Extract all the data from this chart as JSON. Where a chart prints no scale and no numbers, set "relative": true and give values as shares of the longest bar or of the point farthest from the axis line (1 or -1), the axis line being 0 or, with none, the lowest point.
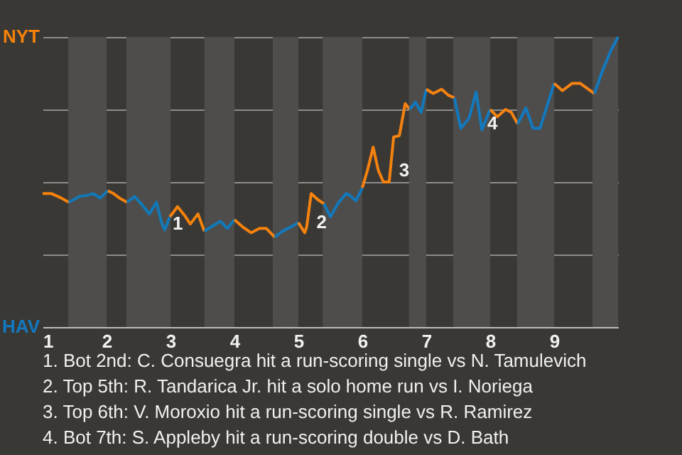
{
  "chart_data": {
    "type": "line",
    "series": [
      {
        "color": "#f5820a",
        "x": [
          1,
          1.14,
          1.29,
          1.41
        ],
        "values": [
          0.46,
          0.46,
          0.445,
          0.43
        ]
      },
      {
        "color": "#1279b8",
        "x": [
          1.41,
          1.57,
          1.71,
          1.79,
          1.9,
          2.02
        ],
        "values": [
          0.43,
          0.45,
          0.455,
          0.46,
          0.445,
          0.47
        ]
      },
      {
        "color": "#f5820b",
        "x": [
          2.02,
          2.11,
          2.2,
          2.32
        ],
        "values": [
          0.47,
          0.46,
          0.445,
          0.43
        ]
      },
      {
        "color": "#1279b9",
        "x": [
          2.32,
          2.44,
          2.56,
          2.67,
          2.78,
          2.86,
          2.91,
          2.99
        ],
        "values": [
          0.43,
          0.45,
          0.42,
          0.39,
          0.43,
          0.36,
          0.335,
          0.38
        ]
      },
      {
        "color": "#f5820c",
        "x": [
          2.99,
          3.11,
          3.22,
          3.31,
          3.43,
          3.53
        ],
        "values": [
          0.38,
          0.415,
          0.385,
          0.355,
          0.39,
          0.33
        ]
      },
      {
        "color": "#1279ba",
        "x": [
          3.53,
          3.67,
          3.78,
          3.89,
          4
        ],
        "values": [
          0.33,
          0.35,
          0.365,
          0.34,
          0.37
        ]
      },
      {
        "color": "#f5820d",
        "x": [
          4,
          4.13,
          4.26,
          4.39,
          4.5,
          4.63
        ],
        "values": [
          0.37,
          0.345,
          0.325,
          0.34,
          0.34,
          0.31
        ]
      },
      {
        "color": "#1279bb",
        "x": [
          4.63,
          4.75,
          4.88,
          5
        ],
        "values": [
          0.31,
          0.33,
          0.345,
          0.36
        ]
      },
      {
        "color": "#f5820e",
        "x": [
          5,
          5.1,
          5.13,
          5.2,
          5.3,
          5.4
        ],
        "values": [
          0.36,
          0.325,
          0.345,
          0.46,
          0.44,
          0.425
        ]
      },
      {
        "color": "#1279bc",
        "x": [
          5.4,
          5.5,
          5.63,
          5.75,
          5.8,
          5.9,
          6
        ],
        "values": [
          0.425,
          0.38,
          0.43,
          0.46,
          0.455,
          0.435,
          0.48
        ]
      },
      {
        "color": "#f5820f",
        "x": [
          6,
          6.08,
          6.17,
          6.25,
          6.33,
          6.42,
          6.49,
          6.58,
          6.67,
          6.74
        ],
        "values": [
          0.48,
          0.54,
          0.62,
          0.54,
          0.5,
          0.5,
          0.655,
          0.66,
          0.77,
          0.75
        ]
      },
      {
        "color": "#1279bd",
        "x": [
          6.74,
          6.83,
          6.92,
          7
        ],
        "values": [
          0.75,
          0.775,
          0.74,
          0.82
        ]
      },
      {
        "color": "#f58210",
        "x": [
          7,
          7.11,
          7.24,
          7.34,
          7.44
        ],
        "values": [
          0.82,
          0.805,
          0.82,
          0.8,
          0.79
        ]
      },
      {
        "color": "#1279be",
        "x": [
          7.44,
          7.54,
          7.67,
          7.78,
          7.87,
          8
        ],
        "values": [
          0.79,
          0.685,
          0.72,
          0.81,
          0.68,
          0.75
        ]
      },
      {
        "color": "#f58211",
        "x": [
          8,
          8.11,
          8.24,
          8.33,
          8.43
        ],
        "values": [
          0.75,
          0.725,
          0.75,
          0.74,
          0.7
        ]
      },
      {
        "color": "#1279bf",
        "x": [
          8.43,
          8.56,
          8.67,
          8.78,
          9
        ],
        "values": [
          0.7,
          0.755,
          0.685,
          0.685,
          0.84
        ]
      },
      {
        "color": "#f58212",
        "x": [
          9,
          9.13,
          9.28,
          9.41,
          9.63
        ],
        "values": [
          0.84,
          0.815,
          0.84,
          0.84,
          0.805
        ]
      },
      {
        "color": "#1279c0",
        "x": [
          9.63,
          9.75,
          9.88,
          10
        ],
        "values": [
          0.805,
          0.88,
          0.95,
          1.0
        ]
      }
    ],
    "xlim": [
      1,
      10
    ],
    "xticks": [
      1,
      2,
      3,
      4,
      5,
      6,
      7,
      8,
      9
    ],
    "relative": true,
    "grid": "y",
    "bands": [
      {
        "axis": "x",
        "from": 1.4,
        "to": 2,
        "color": "#4e4d4b"
      },
      {
        "axis": "x",
        "from": 2.31,
        "to": 3,
        "color": "#4e4d4b"
      },
      {
        "axis": "x",
        "from": 3.53,
        "to": 4,
        "color": "#4e4d4b"
      },
      {
        "axis": "x",
        "from": 4.6,
        "to": 5,
        "color": "#4e4d4b"
      },
      {
        "axis": "x",
        "from": 5.38,
        "to": 6,
        "color": "#4e4d4b"
      },
      {
        "axis": "x",
        "from": 6.73,
        "to": 7,
        "color": "#4e4d4b"
      },
      {
        "axis": "x",
        "from": 7.42,
        "to": 8,
        "color": "#4e4d4b"
      },
      {
        "axis": "x",
        "from": 8.42,
        "to": 9,
        "color": "#4e4d4b"
      },
      {
        "axis": "x",
        "from": 9.6,
        "to": 10,
        "color": "#4e4d4b"
      }
    ],
    "annotations": [
      "NYT",
      "HAV",
      {
        "text": "1",
        "x": 2.99,
        "y": 0.355
      },
      {
        "text": "2",
        "x": 5.24,
        "y": 0.36
      },
      {
        "text": "3",
        "x": 6.53,
        "y": 0.54
      },
      {
        "text": "4",
        "x": 7.91,
        "y": 0.7
      },
      "1. Bot 2nd: C. Consuegra hit a run-scoring single vs N. Tamulevich",
      "2. Top 5th: R. Tandarica Jr. hit a solo home run vs I. Noriega",
      "3. Top 6th: V. Moroxio hit a run-scoring single vs R. Ramirez",
      "4. Bot 7th: S. Appleby hit a run-scoring double vs D. Bath"
    ]
  }
}
